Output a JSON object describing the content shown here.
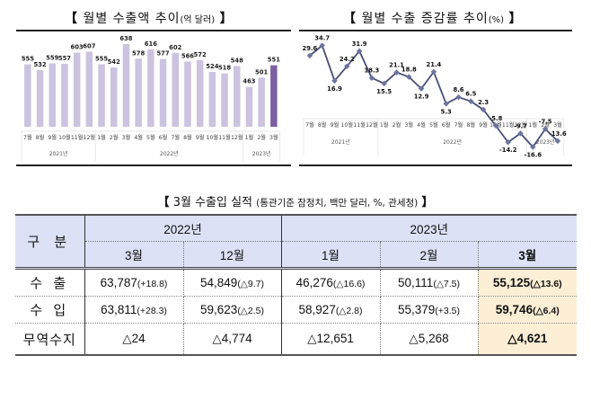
{
  "panels": {
    "bar_title": {
      "open": "【",
      "main": "월별 수출액 추이",
      "unit": "(억 달러)",
      "close": "】"
    },
    "line_title": {
      "open": "【",
      "main": "월별 수출 증감률 추이",
      "unit": "(%)",
      "close": "】"
    }
  },
  "chart_data": [
    {
      "type": "bar",
      "title": "월별 수출액 추이(억 달러)",
      "xlabel": "",
      "ylabel": "",
      "categories": [
        "7월",
        "8월",
        "9월",
        "10월",
        "11월",
        "12월",
        "1월",
        "2월",
        "3월",
        "4월",
        "5월",
        "6월",
        "7월",
        "8월",
        "9월",
        "10월",
        "11월",
        "12월",
        "1월",
        "2월",
        "3월"
      ],
      "groups": [
        {
          "label": "2021년",
          "count": 6
        },
        {
          "label": "2022년",
          "count": 12
        },
        {
          "label": "2023년",
          "count": 3
        }
      ],
      "values": [
        555,
        532,
        559,
        557,
        603,
        607,
        555,
        542,
        638,
        578,
        616,
        577,
        602,
        566,
        572,
        524,
        518,
        548,
        463,
        501,
        551
      ],
      "highlight_index": 20,
      "colors": {
        "bar": "#cbc3df",
        "highlight": "#7b5fa0"
      },
      "ylim": [
        300,
        660
      ],
      "grid": false,
      "data_labels": true
    },
    {
      "type": "line",
      "title": "월별 수출 증감률 추이(%)",
      "xlabel": "",
      "ylabel": "",
      "categories": [
        "7월",
        "8월",
        "9월",
        "10월",
        "11월",
        "12월",
        "1월",
        "2월",
        "3월",
        "4월",
        "5월",
        "6월",
        "7월",
        "8월",
        "9월",
        "10월",
        "11월",
        "12월",
        "1월",
        "2월",
        "3월"
      ],
      "groups": [
        {
          "label": "2021년",
          "count": 6
        },
        {
          "label": "2022년",
          "count": 12
        },
        {
          "label": "2023년",
          "count": 3
        }
      ],
      "values": [
        29.6,
        34.7,
        16.9,
        24.2,
        31.9,
        18.3,
        15.5,
        21.1,
        18.8,
        12.9,
        21.4,
        5.3,
        8.6,
        6.5,
        2.3,
        -5.8,
        -14.2,
        -9.7,
        -16.6,
        -7.5,
        -13.6
      ],
      "colors": {
        "line": "#4a4e78",
        "marker": "#6e74a0"
      },
      "ylim": [
        -20,
        40
      ],
      "grid": false,
      "data_labels": true
    }
  ],
  "table": {
    "title": {
      "open": "【",
      "main": "3월 수출입 실적",
      "sub": "(통관기준 잠정치, 백만 달러, %, 관세청)",
      "close": "】"
    },
    "corner_label": "구 분",
    "year_headers": [
      {
        "label": "2022년"
      },
      {
        "label": "2023년"
      }
    ],
    "month_headers": [
      "3월",
      "12월",
      "1월",
      "2월",
      "3월"
    ],
    "rows": [
      {
        "label": "수 출",
        "cells": [
          {
            "value": "63,787",
            "change": "(+18.8)"
          },
          {
            "value": "54,849",
            "change": "(△9.7)"
          },
          {
            "value": "46,276",
            "change": "(△16.6)"
          },
          {
            "value": "50,111",
            "change": "(△7.5)"
          },
          {
            "value": "55,125",
            "change": "(△13.6)"
          }
        ]
      },
      {
        "label": "수 입",
        "cells": [
          {
            "value": "63,811",
            "change": "(+28.3)"
          },
          {
            "value": "59,623",
            "change": "(△2.5)"
          },
          {
            "value": "58,927",
            "change": "(△2.8)"
          },
          {
            "value": "55,379",
            "change": "(+3.5)"
          },
          {
            "value": "59,746",
            "change": "(△6.4)"
          }
        ]
      },
      {
        "label": "무역수지",
        "cells": [
          {
            "value": "△24",
            "change": ""
          },
          {
            "value": "△4,774",
            "change": ""
          },
          {
            "value": "△12,651",
            "change": ""
          },
          {
            "value": "△5,268",
            "change": ""
          },
          {
            "value": "△4,621",
            "change": ""
          }
        ]
      }
    ],
    "highlight_color": "#fcefd6",
    "header_color": "#dce1f5"
  }
}
